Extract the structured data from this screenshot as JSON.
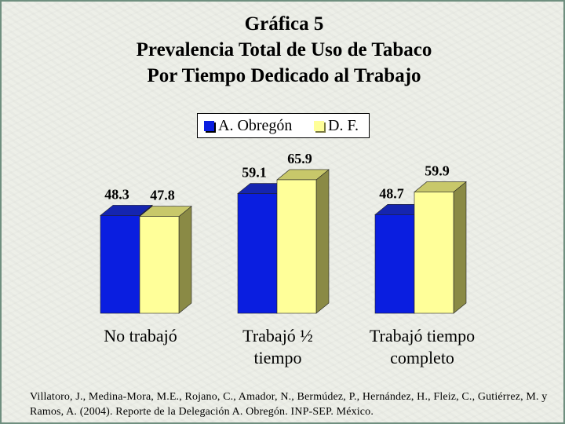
{
  "chart_data": {
    "type": "bar",
    "title": [
      "Gráfica 5",
      "Prevalencia Total de Uso de Tabaco",
      "Por Tiempo Dedicado al Trabajo"
    ],
    "categories": [
      [
        "No trabajó"
      ],
      [
        "Trabajó ½",
        "tiempo"
      ],
      [
        "Trabajó tiempo",
        "completo"
      ]
    ],
    "series": [
      {
        "name": "A. Obregón",
        "values": [
          48.3,
          59.1,
          48.7
        ],
        "color": "#0a1ee0"
      },
      {
        "name": "D. F.",
        "values": [
          47.8,
          65.9,
          59.9
        ],
        "color": "#ffff99"
      }
    ],
    "legend_position": "top",
    "grid": false,
    "style": "3d"
  },
  "citation": "Villatoro, J., Medina-Mora, M.E., Rojano, C., Amador, N., Bermúdez, P., Hernández, H., Fleiz, C., Gutiérrez, M. y Ramos, A. (2004). Reporte de la Delegación A. Obregón. INP-SEP. México."
}
